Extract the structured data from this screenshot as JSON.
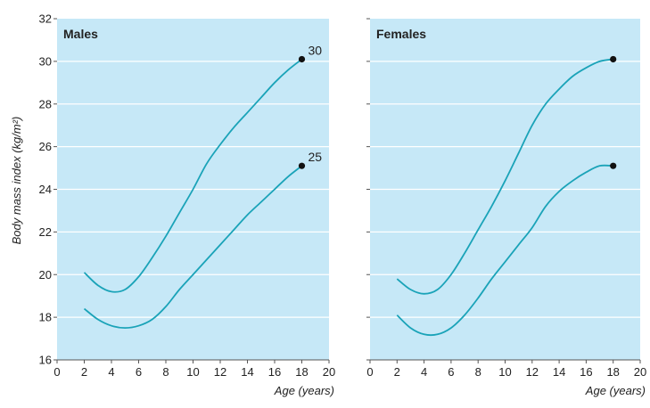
{
  "chart_data": {
    "type": "line",
    "ylabel": "Body mass index (kg/m²)",
    "ylim": [
      16,
      32
    ],
    "yticks": [
      "16",
      "18",
      "20",
      "22",
      "24",
      "26",
      "28",
      "30",
      "32"
    ],
    "xlabel": "Age (years)",
    "xlim": [
      0,
      20
    ],
    "xticks": [
      "0",
      "2",
      "4",
      "6",
      "8",
      "10",
      "12",
      "14",
      "16",
      "18",
      "20"
    ],
    "background": "#c6e8f7",
    "grid_color": "#ffffff",
    "line_color": "#1aa3b8",
    "panels": [
      {
        "title": "Males",
        "series": [
          {
            "end_label": "30",
            "x": [
              2,
              3,
              4,
              5,
              6,
              7,
              8,
              9,
              10,
              11,
              12,
              13,
              14,
              15,
              16,
              17,
              18
            ],
            "y": [
              20.1,
              19.5,
              19.2,
              19.3,
              19.9,
              20.8,
              21.8,
              22.9,
              24.0,
              25.2,
              26.1,
              26.9,
              27.6,
              28.3,
              29.0,
              29.6,
              30.1
            ]
          },
          {
            "end_label": "25",
            "x": [
              2,
              3,
              4,
              5,
              6,
              7,
              8,
              9,
              10,
              11,
              12,
              13,
              14,
              15,
              16,
              17,
              18
            ],
            "y": [
              18.4,
              17.9,
              17.6,
              17.5,
              17.6,
              17.9,
              18.5,
              19.3,
              20.0,
              20.7,
              21.4,
              22.1,
              22.8,
              23.4,
              24.0,
              24.6,
              25.1
            ]
          }
        ]
      },
      {
        "title": "Females",
        "series": [
          {
            "end_label": "",
            "x": [
              2,
              3,
              4,
              5,
              6,
              7,
              8,
              9,
              10,
              11,
              12,
              13,
              14,
              15,
              16,
              17,
              18
            ],
            "y": [
              19.8,
              19.3,
              19.1,
              19.3,
              20.0,
              21.0,
              22.1,
              23.2,
              24.4,
              25.7,
              27.0,
              28.0,
              28.7,
              29.3,
              29.7,
              30.0,
              30.1
            ]
          },
          {
            "end_label": "",
            "x": [
              2,
              3,
              4,
              5,
              6,
              7,
              8,
              9,
              10,
              11,
              12,
              13,
              14,
              15,
              16,
              17,
              18
            ],
            "y": [
              18.1,
              17.5,
              17.2,
              17.2,
              17.5,
              18.1,
              18.9,
              19.8,
              20.6,
              21.4,
              22.2,
              23.2,
              23.9,
              24.4,
              24.8,
              25.1,
              25.1
            ]
          }
        ]
      }
    ]
  }
}
